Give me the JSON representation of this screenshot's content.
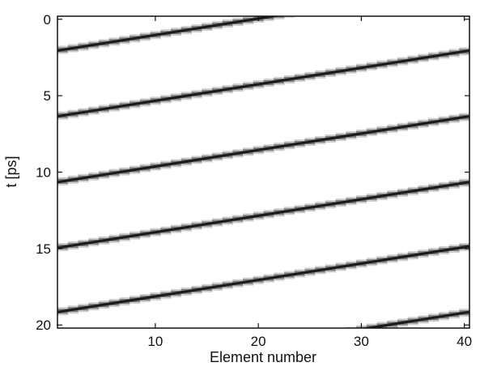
{
  "chart_data": {
    "type": "heatmap",
    "title": "",
    "xlabel": "Element number",
    "ylabel": "t [ps]",
    "xlim": [
      0.5,
      40.5
    ],
    "ylim": [
      20.2,
      -0.2
    ],
    "y_inverted": true,
    "x_ticks": [
      10,
      20,
      30,
      40
    ],
    "y_ticks": [
      0,
      5,
      10,
      15,
      20
    ],
    "grid": false,
    "colormap": "gray-inverted",
    "elements": 40,
    "line_slope_ps_per_element": -0.108,
    "wave_period_ps": 4.3,
    "stripes": [
      {
        "name": "",
        "x": [
          1,
          40
        ],
        "y": [
          2.0,
          -2.2
        ]
      },
      {
        "name": "",
        "x": [
          1,
          40
        ],
        "y": [
          6.3,
          2.1
        ]
      },
      {
        "name": "",
        "x": [
          1,
          40
        ],
        "y": [
          10.6,
          6.4
        ]
      },
      {
        "name": "",
        "x": [
          1,
          40
        ],
        "y": [
          14.9,
          10.7
        ]
      },
      {
        "name": "",
        "x": [
          1,
          40
        ],
        "y": [
          19.1,
          14.9
        ]
      },
      {
        "name": "",
        "x": [
          1,
          40
        ],
        "y": [
          23.4,
          19.2
        ]
      }
    ]
  },
  "colors": {
    "background": "#ffffff",
    "stripe_core": "#1a1a1a",
    "stripe_halo": "#cfcfcf",
    "axes": "#111111"
  }
}
